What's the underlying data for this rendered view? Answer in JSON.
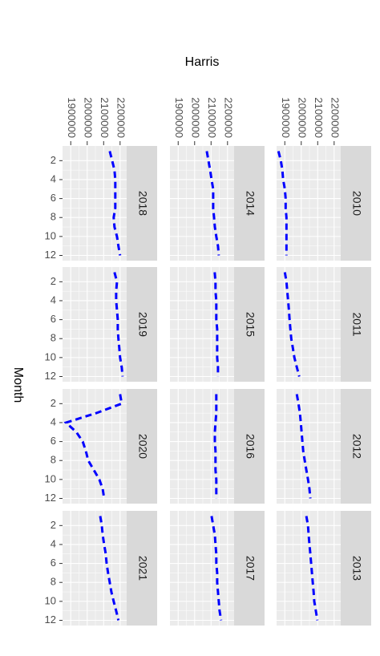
{
  "chart_data": {
    "type": "line",
    "y_label": "Harris",
    "x_label": "Month",
    "x": [
      1,
      2,
      3,
      4,
      5,
      6,
      7,
      8,
      9,
      10,
      11,
      12
    ],
    "xlim": [
      0.45,
      12.55
    ],
    "xticks": [
      2,
      4,
      6,
      8,
      10,
      12
    ],
    "ylim": [
      1850000,
      2240000
    ],
    "yticks": [
      1900000,
      2000000,
      2100000,
      2200000
    ],
    "grid": true,
    "line_style": "dashed",
    "series": [
      {
        "name": "2010",
        "color": "#0000ff",
        "values": [
          1861000,
          1876000,
          1885000,
          1890000,
          1900000,
          1905000,
          1905000,
          1910000,
          1910000,
          1910000,
          1910000,
          1910000
        ]
      },
      {
        "name": "2011",
        "color": "#0000ff",
        "values": [
          1900000,
          1910000,
          1915000,
          1920000,
          1925000,
          1929000,
          1934000,
          1939000,
          1949000,
          1958000,
          1973000,
          1988000
        ]
      },
      {
        "name": "2012",
        "color": "#0000ff",
        "values": [
          1973000,
          1983000,
          1992000,
          1997000,
          2002000,
          2007000,
          2012000,
          2021000,
          2031000,
          2041000,
          2050000,
          2055000
        ]
      },
      {
        "name": "2013",
        "color": "#0000ff",
        "values": [
          2031000,
          2041000,
          2045000,
          2050000,
          2055000,
          2060000,
          2065000,
          2070000,
          2075000,
          2079000,
          2089000,
          2098000
        ]
      },
      {
        "name": "2014",
        "color": "#0000ff",
        "values": [
          2074000,
          2084000,
          2094000,
          2103000,
          2113000,
          2113000,
          2113000,
          2118000,
          2123000,
          2132000,
          2142000,
          2147000
        ]
      },
      {
        "name": "2015",
        "color": "#0000ff",
        "values": [
          2122000,
          2127000,
          2127000,
          2132000,
          2132000,
          2132000,
          2137000,
          2137000,
          2137000,
          2137000,
          2142000,
          2142000
        ]
      },
      {
        "name": "2016",
        "color": "#0000ff",
        "values": [
          2132000,
          2132000,
          2132000,
          2127000,
          2123000,
          2123000,
          2127000,
          2127000,
          2127000,
          2132000,
          2132000,
          2132000
        ]
      },
      {
        "name": "2017",
        "color": "#0000ff",
        "values": [
          2103000,
          2113000,
          2123000,
          2127000,
          2132000,
          2132000,
          2137000,
          2137000,
          2142000,
          2147000,
          2152000,
          2161000
        ]
      },
      {
        "name": "2018",
        "color": "#0000ff",
        "values": [
          2137000,
          2152000,
          2166000,
          2171000,
          2171000,
          2171000,
          2171000,
          2161000,
          2166000,
          2181000,
          2190000,
          2200000
        ]
      },
      {
        "name": "2019",
        "color": "#0000ff",
        "values": [
          2166000,
          2181000,
          2176000,
          2176000,
          2181000,
          2186000,
          2186000,
          2190000,
          2195000,
          2200000,
          2210000,
          2215000
        ]
      },
      {
        "name": "2020",
        "color": "#0000ff",
        "values": [
          2200000,
          2210000,
          2055000,
          1871000,
          1934000,
          1973000,
          1992000,
          2006000,
          2040000,
          2074000,
          2094000,
          2103000
        ]
      },
      {
        "name": "2021",
        "color": "#0000ff",
        "values": [
          2079000,
          2089000,
          2094000,
          2103000,
          2113000,
          2118000,
          2127000,
          2137000,
          2147000,
          2161000,
          2176000,
          2190000
        ]
      }
    ]
  }
}
